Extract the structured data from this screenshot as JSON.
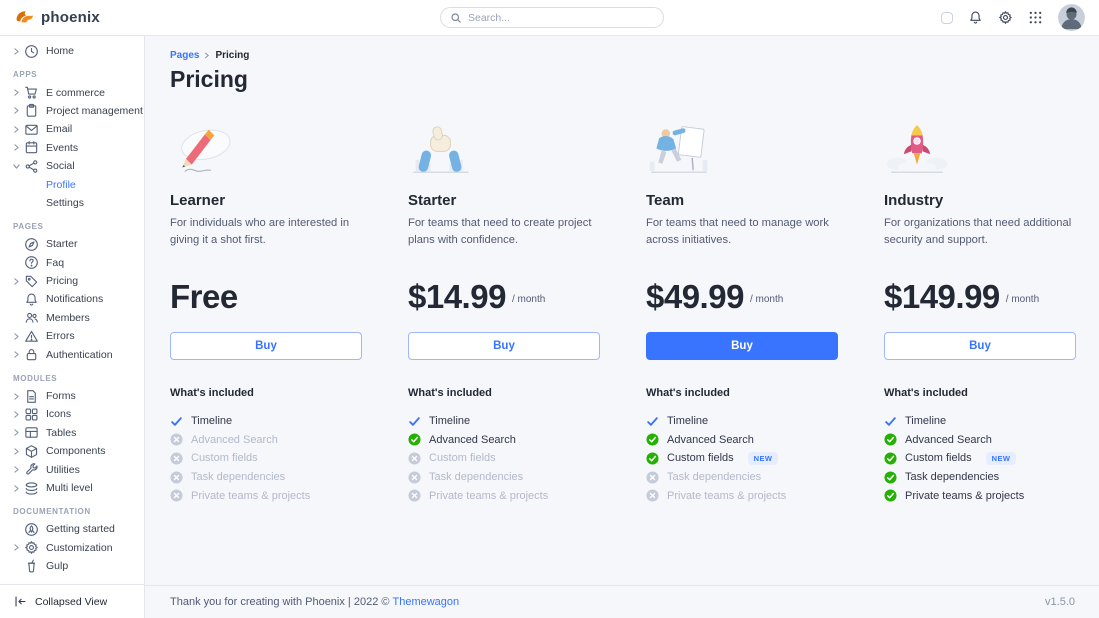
{
  "app": {
    "brand": "phoenix"
  },
  "navbar": {
    "search_placeholder": "Search...",
    "action_icons": [
      "theme-toggle",
      "bell-icon",
      "gear-icon",
      "grid-icon",
      "avatar"
    ]
  },
  "sidebar": {
    "collapse_label": "Collapsed View",
    "sections": [
      {
        "label": "",
        "items": [
          {
            "label": "Home",
            "icon": "clock-icon",
            "chevron": true
          }
        ]
      },
      {
        "label": "APPS",
        "items": [
          {
            "label": "E commerce",
            "icon": "cart-icon",
            "chevron": true
          },
          {
            "label": "Project management",
            "icon": "clipboard-icon",
            "chevron": true
          },
          {
            "label": "Email",
            "icon": "envelope-icon",
            "chevron": true
          },
          {
            "label": "Events",
            "icon": "calendar-icon",
            "chevron": true
          },
          {
            "label": "Social",
            "icon": "share-icon",
            "chevron": true,
            "expanded": true,
            "children": [
              {
                "label": "Profile",
                "active": true
              },
              {
                "label": "Settings",
                "active": false
              }
            ]
          }
        ]
      },
      {
        "label": "PAGES",
        "items": [
          {
            "label": "Starter",
            "icon": "compass-icon",
            "chevron": false
          },
          {
            "label": "Faq",
            "icon": "question-circle-icon",
            "chevron": false
          },
          {
            "label": "Pricing",
            "icon": "tag-icon",
            "chevron": true
          },
          {
            "label": "Notifications",
            "icon": "bell-icon",
            "chevron": false
          },
          {
            "label": "Members",
            "icon": "users-icon",
            "chevron": false
          },
          {
            "label": "Errors",
            "icon": "warning-icon",
            "chevron": true
          },
          {
            "label": "Authentication",
            "icon": "lock-icon",
            "chevron": true
          }
        ]
      },
      {
        "label": "MODULES",
        "items": [
          {
            "label": "Forms",
            "icon": "file-icon",
            "chevron": true
          },
          {
            "label": "Icons",
            "icon": "shapes-icon",
            "chevron": true
          },
          {
            "label": "Tables",
            "icon": "table-icon",
            "chevron": true
          },
          {
            "label": "Components",
            "icon": "cube-icon",
            "chevron": true
          },
          {
            "label": "Utilities",
            "icon": "wrench-icon",
            "chevron": true
          },
          {
            "label": "Multi level",
            "icon": "layers-icon",
            "chevron": true
          }
        ]
      },
      {
        "label": "DOCUMENTATION",
        "items": [
          {
            "label": "Getting started",
            "icon": "rocket-icon",
            "chevron": false
          },
          {
            "label": "Customization",
            "icon": "gear-icon",
            "chevron": true
          },
          {
            "label": "Gulp",
            "icon": "gulp-icon",
            "chevron": false
          }
        ]
      }
    ]
  },
  "breadcrumb": {
    "items": [
      "Pages",
      "Pricing"
    ]
  },
  "page": {
    "title": "Pricing"
  },
  "included_title": "What's included",
  "plans": [
    {
      "name": "Learner",
      "illustration": "pencil-illustration",
      "description": "For individuals who are interested in giving it a shot first.",
      "price": "Free",
      "period": "",
      "buy_label": "Buy",
      "buy_style": "outline",
      "features": [
        {
          "label": "Timeline",
          "state": "check-blue",
          "badge": ""
        },
        {
          "label": "Advanced Search",
          "state": "disabled",
          "badge": ""
        },
        {
          "label": "Custom fields",
          "state": "disabled",
          "badge": ""
        },
        {
          "label": "Task dependencies",
          "state": "disabled",
          "badge": ""
        },
        {
          "label": "Private teams & projects",
          "state": "disabled",
          "badge": ""
        }
      ]
    },
    {
      "name": "Starter",
      "illustration": "thumbs-up-illustration",
      "description": "For teams that need to create project plans with confidence.",
      "price": "$14.99",
      "period": "/ month",
      "buy_label": "Buy",
      "buy_style": "outline",
      "features": [
        {
          "label": "Timeline",
          "state": "check-blue",
          "badge": ""
        },
        {
          "label": "Advanced Search",
          "state": "check-green",
          "badge": ""
        },
        {
          "label": "Custom fields",
          "state": "disabled",
          "badge": ""
        },
        {
          "label": "Task dependencies",
          "state": "disabled",
          "badge": ""
        },
        {
          "label": "Private teams & projects",
          "state": "disabled",
          "badge": ""
        }
      ]
    },
    {
      "name": "Team",
      "illustration": "presenter-illustration",
      "description": "For teams that need to manage work across initiatives.",
      "price": "$49.99",
      "period": "/ month",
      "buy_label": "Buy",
      "buy_style": "solid",
      "features": [
        {
          "label": "Timeline",
          "state": "check-blue",
          "badge": ""
        },
        {
          "label": "Advanced Search",
          "state": "check-green",
          "badge": ""
        },
        {
          "label": "Custom fields",
          "state": "check-green",
          "badge": "NEW"
        },
        {
          "label": "Task dependencies",
          "state": "disabled",
          "badge": ""
        },
        {
          "label": "Private teams & projects",
          "state": "disabled",
          "badge": ""
        }
      ]
    },
    {
      "name": "Industry",
      "illustration": "rocket-illustration",
      "description": "For organizations that need additional security and support.",
      "price": "$149.99",
      "period": "/ month",
      "buy_label": "Buy",
      "buy_style": "outline",
      "features": [
        {
          "label": "Timeline",
          "state": "check-blue",
          "badge": ""
        },
        {
          "label": "Advanced Search",
          "state": "check-green",
          "badge": ""
        },
        {
          "label": "Custom fields",
          "state": "check-green",
          "badge": "NEW"
        },
        {
          "label": "Task dependencies",
          "state": "check-green",
          "badge": ""
        },
        {
          "label": "Private teams & projects",
          "state": "check-green",
          "badge": ""
        }
      ]
    }
  ],
  "footer": {
    "text": "Thank you for creating with Phoenix | 2022 ©",
    "link": "Themewagon",
    "version": "v1.5.0"
  },
  "colors": {
    "primary": "#3874ff",
    "success": "#25b003",
    "disabled_icon": "#c5cbd9",
    "brand_orange": "#e5780b",
    "main_bg": "#f5f7fa",
    "border": "#e3e6ed"
  }
}
